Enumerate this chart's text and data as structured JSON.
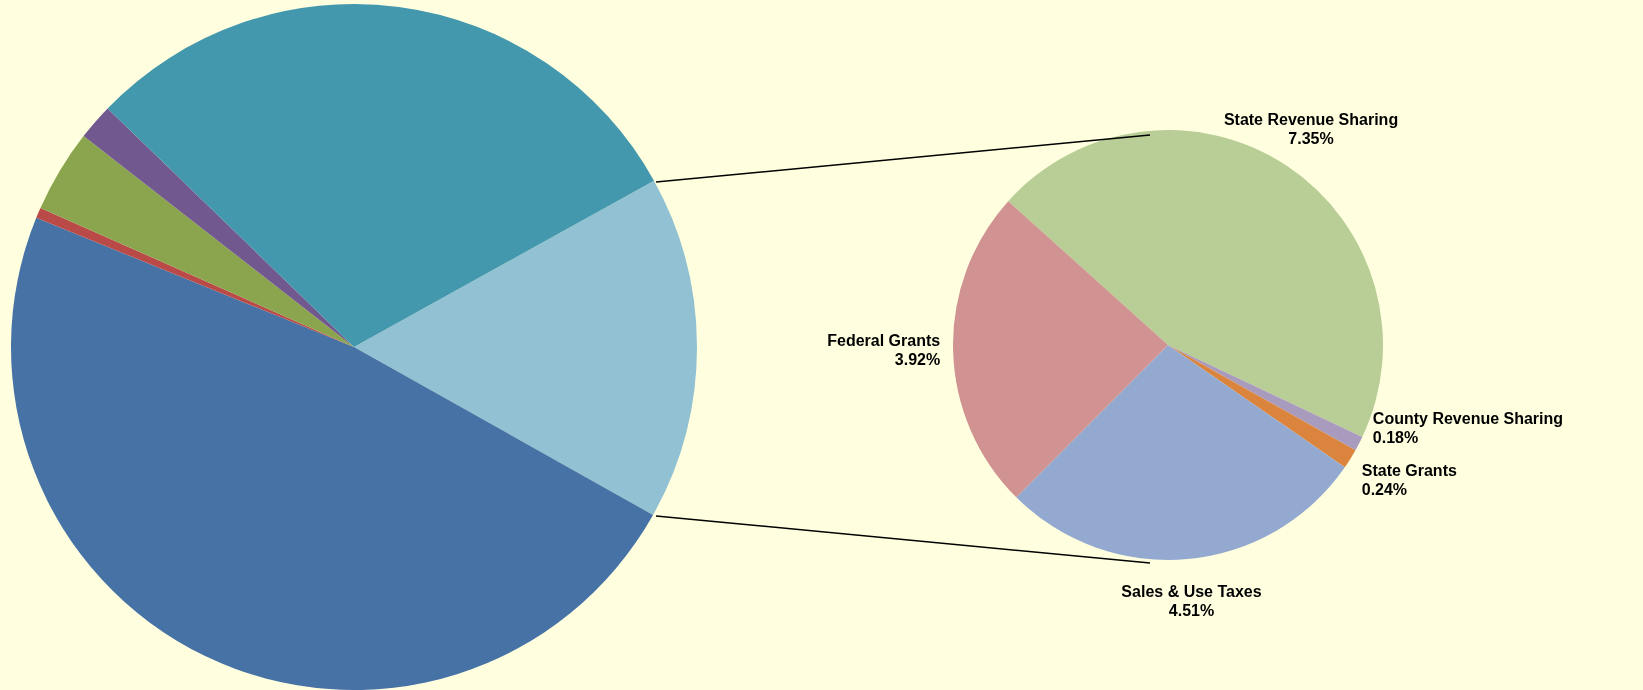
{
  "chart_data": [
    {
      "type": "pie",
      "categories": [
        null,
        null,
        null,
        null,
        null,
        null
      ],
      "values": [
        16.2,
        48.0,
        0.5,
        3.9,
        1.7,
        29.7
      ],
      "colors": [
        "#92c1d3",
        "#4672a6",
        "#b94a48",
        "#8ba54f",
        "#71588f",
        "#4398ae"
      ],
      "legend": false
    },
    {
      "type": "pie",
      "categories": [
        "State Revenue Sharing",
        "County Revenue Sharing",
        "State Grants",
        "Sales & Use Taxes",
        "Federal Grants"
      ],
      "values": [
        7.35,
        0.18,
        0.24,
        4.51,
        3.92
      ],
      "value_labels": [
        "7.35%",
        "0.18%",
        "0.24%",
        "4.51%",
        "3.92%"
      ],
      "colors": [
        "#b9cd96",
        "#a99bbd",
        "#db843d",
        "#93a9d0",
        "#d09392"
      ],
      "legend": false
    }
  ]
}
